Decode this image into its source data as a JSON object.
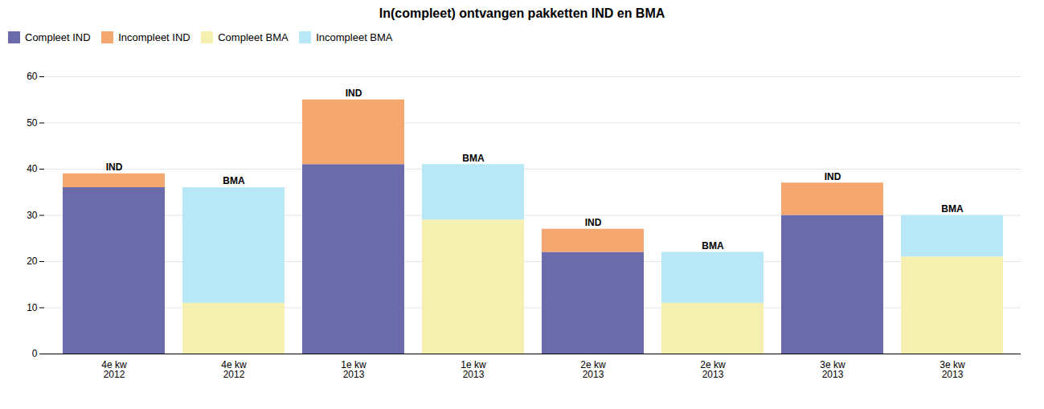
{
  "chart_data": {
    "type": "bar",
    "title": "In(compleet) ontvangen pakketten IND en BMA",
    "categories": [
      "4e kw\n2012",
      "4e kw\n2012",
      "1e kw\n2013",
      "1e kw\n2013",
      "2e kw\n2013",
      "2e kw\n2013",
      "3e kw\n2013",
      "3e kw\n2013"
    ],
    "series": [
      {
        "name": "Compleet IND",
        "color": "#6b6aaa",
        "values": [
          36,
          null,
          41,
          null,
          22,
          null,
          30,
          null
        ]
      },
      {
        "name": "Incompleet IND",
        "color": "#f4a870",
        "values": [
          3,
          null,
          14,
          null,
          5,
          null,
          7,
          null
        ]
      },
      {
        "name": "Compleet BMA",
        "color": "#f5f0b0",
        "values": [
          null,
          11,
          null,
          29,
          null,
          11,
          null,
          21
        ]
      },
      {
        "name": "Incompleet BMA",
        "color": "#b8e8f5",
        "values": [
          null,
          25,
          null,
          12,
          null,
          11,
          null,
          9
        ]
      }
    ],
    "annotations": [
      "IND",
      "BMA",
      "IND",
      "BMA",
      "IND",
      "BMA",
      "IND",
      "BMA"
    ],
    "stacked": true,
    "ylim": [
      0,
      60
    ],
    "yticks": [
      0,
      10,
      20,
      30,
      40,
      50,
      60
    ],
    "grid": true,
    "legend": "top"
  }
}
